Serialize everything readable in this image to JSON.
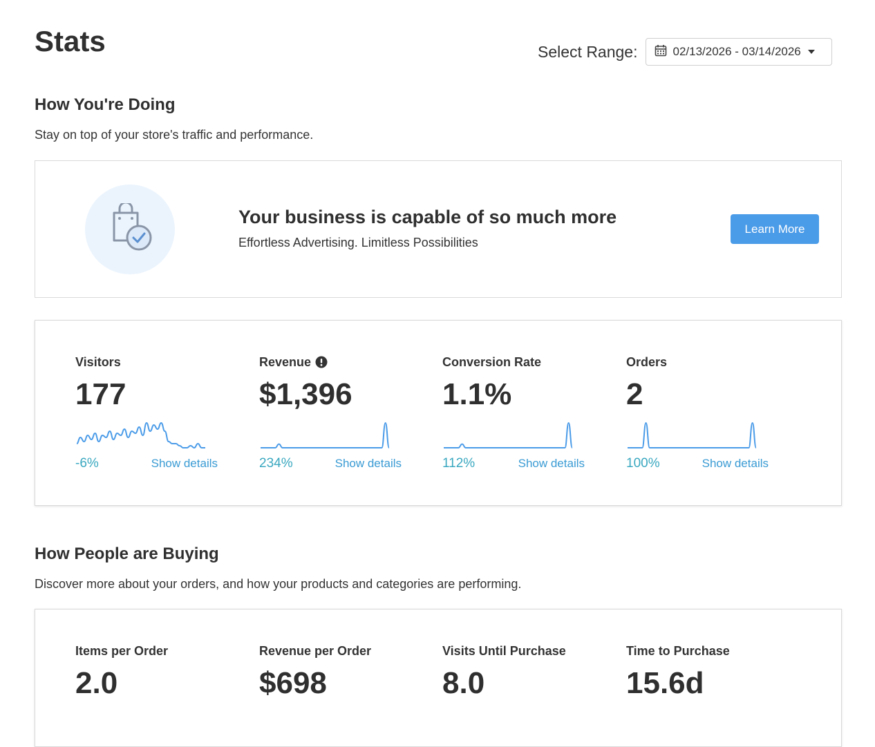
{
  "header": {
    "title": "Stats",
    "range_label": "Select Range:",
    "range_value": "02/13/2026 - 03/14/2026",
    "range_icon": "calendar-icon"
  },
  "doing": {
    "title": "How You're Doing",
    "description": "Stay on top of your store's traffic and performance."
  },
  "promo": {
    "icon": "shopping-bag-check-icon",
    "title": "Your business is capable of so much more",
    "subtitle": "Effortless Advertising. Limitless Possibilities",
    "button_label": "Learn More",
    "button_color": "#4a9be8"
  },
  "metrics": [
    {
      "label": "Visitors",
      "value": "177",
      "change": "-6%",
      "details_label": "Show details",
      "spark": [
        2,
        5,
        3,
        6,
        4,
        7,
        3,
        6,
        5,
        8,
        4,
        7,
        6,
        9,
        5,
        8,
        7,
        10,
        6,
        12,
        8,
        11,
        9,
        12,
        8,
        3,
        2,
        2,
        1,
        0,
        0,
        1,
        0,
        2,
        0,
        0
      ]
    },
    {
      "label": "Revenue",
      "value": "$1,396",
      "change": "234%",
      "details_label": "Show details",
      "info_icon": "info-circle-icon",
      "spark": [
        0,
        0,
        0,
        0,
        0,
        3,
        0,
        0,
        0,
        0,
        0,
        0,
        0,
        0,
        0,
        0,
        0,
        0,
        0,
        0,
        0,
        0,
        0,
        0,
        0,
        0,
        0,
        0,
        0,
        0,
        0,
        0,
        0,
        0,
        20,
        0
      ]
    },
    {
      "label": "Conversion Rate",
      "value": "1.1%",
      "change": "112%",
      "details_label": "Show details",
      "spark": [
        0,
        0,
        0,
        0,
        0,
        3,
        0,
        0,
        0,
        0,
        0,
        0,
        0,
        0,
        0,
        0,
        0,
        0,
        0,
        0,
        0,
        0,
        0,
        0,
        0,
        0,
        0,
        0,
        0,
        0,
        0,
        0,
        0,
        0,
        20,
        0
      ]
    },
    {
      "label": "Orders",
      "value": "2",
      "change": "100%",
      "details_label": "Show details",
      "spark": [
        0,
        0,
        0,
        0,
        0,
        20,
        0,
        0,
        0,
        0,
        0,
        0,
        0,
        0,
        0,
        0,
        0,
        0,
        0,
        0,
        0,
        0,
        0,
        0,
        0,
        0,
        0,
        0,
        0,
        0,
        0,
        0,
        0,
        0,
        20,
        0
      ]
    }
  ],
  "buying": {
    "title": "How People are Buying",
    "description": "Discover more about your orders, and how your products and categories are performing.",
    "metrics": [
      {
        "label": "Items per Order",
        "value": "2.0"
      },
      {
        "label": "Revenue per Order",
        "value": "$698"
      },
      {
        "label": "Visits Until Purchase",
        "value": "8.0"
      },
      {
        "label": "Time to Purchase",
        "value": "15.6d"
      }
    ]
  },
  "colors": {
    "accent": "#4a9be8",
    "sparkline": "#4a9be8",
    "change_text": "#3aa8c0",
    "link_text": "#3a9bd4"
  }
}
